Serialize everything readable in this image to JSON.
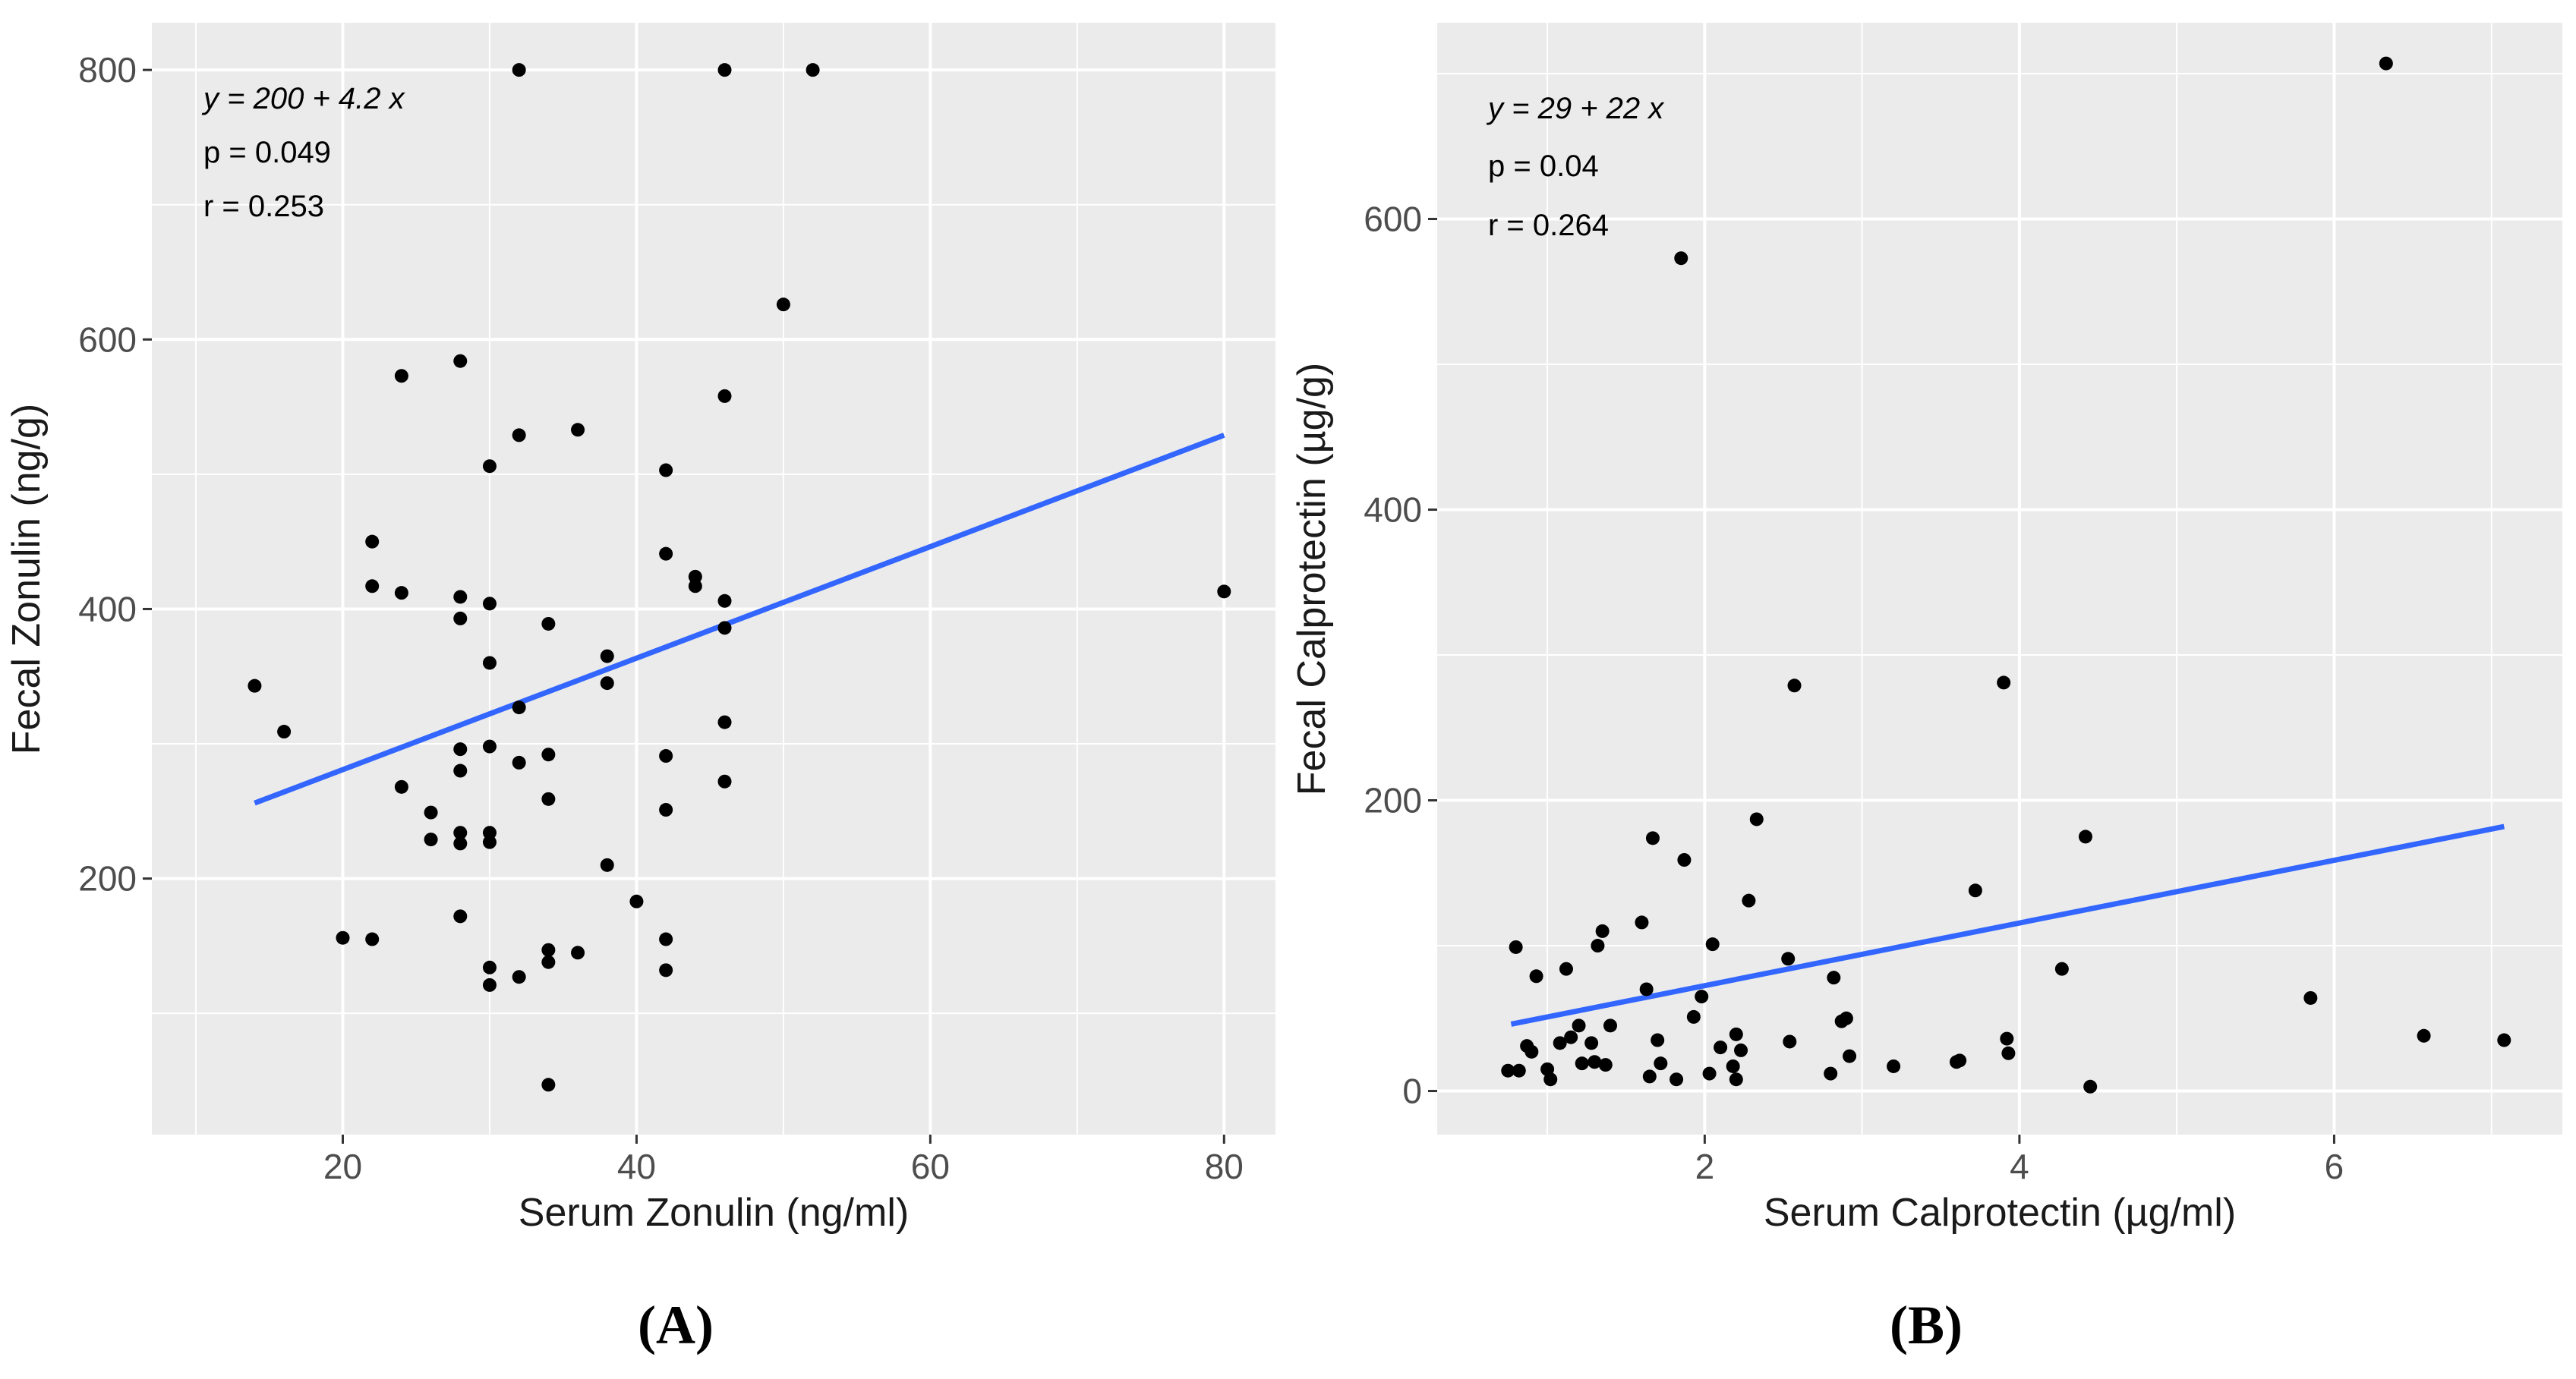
{
  "chart_data": [
    {
      "panel_label": "(A)",
      "type": "scatter",
      "xlabel": "Serum Zonulin (ng/ml)",
      "ylabel": "Fecal Zonulin (ng/g)",
      "xlim": [
        7,
        83.5
      ],
      "ylim": [
        10,
        835
      ],
      "xticks": [
        20,
        40,
        60,
        80
      ],
      "yticks": [
        200,
        400,
        600,
        800
      ],
      "grid": true,
      "annotations": {
        "equation": "y = 200 + 4.2 x",
        "p": "p = 0.049",
        "r": "r = 0.253"
      },
      "fit_line": {
        "x": [
          14,
          80
        ],
        "y": [
          256,
          529
        ]
      },
      "points": [
        [
          14,
          343
        ],
        [
          16,
          309
        ],
        [
          20,
          156
        ],
        [
          22,
          450
        ],
        [
          22,
          417
        ],
        [
          22,
          155
        ],
        [
          24,
          573
        ],
        [
          24,
          412
        ],
        [
          24,
          268
        ],
        [
          26,
          249
        ],
        [
          26,
          229
        ],
        [
          28,
          584
        ],
        [
          28,
          409
        ],
        [
          28,
          393
        ],
        [
          28,
          296
        ],
        [
          28,
          280
        ],
        [
          28,
          234
        ],
        [
          28,
          226
        ],
        [
          28,
          172
        ],
        [
          30,
          506
        ],
        [
          30,
          404
        ],
        [
          30,
          360
        ],
        [
          30,
          298
        ],
        [
          30,
          234
        ],
        [
          30,
          227
        ],
        [
          30,
          134
        ],
        [
          30,
          121
        ],
        [
          32,
          800
        ],
        [
          32,
          529
        ],
        [
          32,
          327
        ],
        [
          32,
          286
        ],
        [
          32,
          127
        ],
        [
          34,
          389
        ],
        [
          34,
          292
        ],
        [
          34,
          259
        ],
        [
          34,
          147
        ],
        [
          34,
          138
        ],
        [
          34,
          47
        ],
        [
          36,
          533
        ],
        [
          36,
          145
        ],
        [
          38,
          365
        ],
        [
          38,
          345
        ],
        [
          38,
          210
        ],
        [
          40,
          183
        ],
        [
          42,
          503
        ],
        [
          42,
          441
        ],
        [
          42,
          291
        ],
        [
          42,
          251
        ],
        [
          42,
          155
        ],
        [
          42,
          132
        ],
        [
          44,
          424
        ],
        [
          44,
          417
        ],
        [
          46,
          800
        ],
        [
          46,
          558
        ],
        [
          46,
          406
        ],
        [
          46,
          386
        ],
        [
          46,
          316
        ],
        [
          46,
          272
        ],
        [
          50,
          626
        ],
        [
          52,
          800
        ],
        [
          80,
          413
        ]
      ]
    },
    {
      "panel_label": "(B)",
      "type": "scatter",
      "xlabel": "Serum Calprotectin (µg/ml)",
      "ylabel": "Fecal Calprotectin (µg/g)",
      "xlim": [
        0.3,
        7.45
      ],
      "ylim": [
        -30,
        735
      ],
      "xticks": [
        2,
        4,
        6
      ],
      "yticks": [
        0,
        200,
        400,
        600
      ],
      "grid": true,
      "annotations": {
        "equation": "y = 29 + 22 x",
        "p": "p = 0.04",
        "r": "r = 0.264"
      },
      "fit_line": {
        "x": [
          0.77,
          7.08
        ],
        "y": [
          46,
          182
        ]
      },
      "points": [
        [
          0.75,
          14
        ],
        [
          0.8,
          99
        ],
        [
          0.82,
          14
        ],
        [
          0.87,
          31
        ],
        [
          0.9,
          27
        ],
        [
          0.93,
          79
        ],
        [
          1.0,
          15
        ],
        [
          1.02,
          8
        ],
        [
          1.08,
          33
        ],
        [
          1.12,
          84
        ],
        [
          1.15,
          37
        ],
        [
          1.2,
          45
        ],
        [
          1.22,
          19
        ],
        [
          1.28,
          33
        ],
        [
          1.3,
          20
        ],
        [
          1.32,
          100
        ],
        [
          1.35,
          110
        ],
        [
          1.37,
          18
        ],
        [
          1.4,
          45
        ],
        [
          1.6,
          116
        ],
        [
          1.63,
          70
        ],
        [
          1.65,
          10
        ],
        [
          1.67,
          174
        ],
        [
          1.7,
          35
        ],
        [
          1.72,
          19
        ],
        [
          1.82,
          8
        ],
        [
          1.85,
          573
        ],
        [
          1.87,
          159
        ],
        [
          1.93,
          51
        ],
        [
          1.98,
          65
        ],
        [
          2.03,
          12
        ],
        [
          2.05,
          101
        ],
        [
          2.1,
          30
        ],
        [
          2.18,
          17
        ],
        [
          2.2,
          8
        ],
        [
          2.2,
          39
        ],
        [
          2.23,
          28
        ],
        [
          2.28,
          131
        ],
        [
          2.33,
          187
        ],
        [
          2.53,
          91
        ],
        [
          2.54,
          34
        ],
        [
          2.57,
          279
        ],
        [
          2.8,
          12
        ],
        [
          2.82,
          78
        ],
        [
          2.87,
          48
        ],
        [
          2.9,
          50
        ],
        [
          2.92,
          24
        ],
        [
          3.2,
          17
        ],
        [
          3.6,
          20
        ],
        [
          3.62,
          21
        ],
        [
          3.72,
          138
        ],
        [
          3.9,
          281
        ],
        [
          3.92,
          36
        ],
        [
          3.93,
          26
        ],
        [
          4.27,
          84
        ],
        [
          4.42,
          175
        ],
        [
          4.45,
          3
        ],
        [
          5.85,
          64
        ],
        [
          6.33,
          707
        ],
        [
          6.57,
          38
        ],
        [
          7.08,
          35
        ]
      ]
    }
  ]
}
